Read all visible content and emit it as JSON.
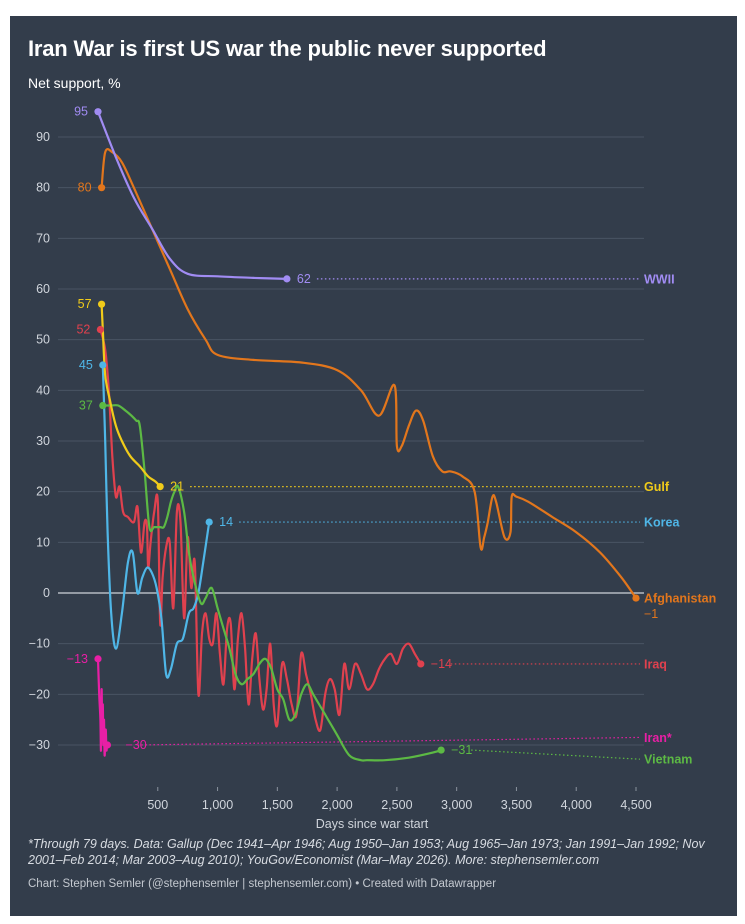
{
  "header": {
    "title": "Iran War is first US war the public never supported",
    "subtitle": "Net support, %"
  },
  "footer": {
    "note": "*Through 79 days. Data: Gallup (Dec 1941–Apr 1946; Aug 1950–Jan 1953; Aug 1965–Jan 1973; Jan 1991–Jan 1992; Nov 2001–Feb 2014; Mar 2003–Aug 2010); YouGov/Economist (Mar–May 2026). More: stephensemler.com",
    "credit": "Chart: Stephen Semler (@stephensemler | stephensemler.com) • Created with Datawrapper"
  },
  "chart_data": {
    "type": "line",
    "title": "Iran War is first US war the public never supported",
    "subtitle": "Net support, %",
    "xlabel": "Days since war start",
    "ylabel": "",
    "xlim": [
      -150,
      4600
    ],
    "ylim": [
      -38,
      98
    ],
    "x_ticks": [
      500,
      1000,
      1500,
      2000,
      2500,
      3000,
      3500,
      4000,
      4500
    ],
    "x_tick_labels": [
      "500",
      "1,000",
      "1,500",
      "2,000",
      "2,500",
      "3,000",
      "3,500",
      "4,000",
      "4,500"
    ],
    "y_ticks": [
      -30,
      -20,
      -10,
      0,
      10,
      20,
      30,
      40,
      50,
      60,
      70,
      80,
      90
    ],
    "y_tick_labels": [
      "−30",
      "−20",
      "−10",
      "0",
      "10",
      "20",
      "30",
      "40",
      "50",
      "60",
      "70",
      "80",
      "90"
    ],
    "grid": true,
    "legend": "direct labels at right",
    "series": [
      {
        "name": "WWII",
        "color": "#a18cf3",
        "start_label": "95",
        "end_label": "62",
        "x": [
          0,
          150,
          300,
          450,
          600,
          750,
          1000,
          1300,
          1580
        ],
        "y": [
          95,
          86,
          78,
          72,
          66,
          63,
          62.5,
          62.2,
          62
        ]
      },
      {
        "name": "Afghanistan",
        "color": "#e2761c",
        "start_label": "80",
        "end_label": "−1",
        "x": [
          30,
          60,
          120,
          200,
          300,
          450,
          600,
          750,
          900,
          1000,
          1300,
          1700,
          2000,
          2200,
          2350,
          2480,
          2500,
          2540,
          2600,
          2660,
          2720,
          2800,
          2880,
          2950,
          3050,
          3150,
          3200,
          3230,
          3260,
          3300,
          3330,
          3400,
          3450,
          3460,
          3500,
          3600,
          3800,
          4000,
          4200,
          4380,
          4500
        ],
        "y": [
          80,
          87,
          87,
          85,
          80,
          72,
          64,
          56,
          50,
          47,
          46,
          45.5,
          44,
          40,
          35,
          41,
          29,
          29,
          33,
          36,
          34,
          27,
          24,
          24,
          23,
          20,
          9,
          11,
          14,
          19,
          18,
          11,
          12,
          19,
          19,
          18,
          15,
          12,
          8,
          3,
          -1
        ]
      },
      {
        "name": "Gulf",
        "color": "#f0cb1a",
        "start_label": "57",
        "end_label": "21",
        "x": [
          30,
          40,
          60,
          100,
          150,
          200,
          270,
          350,
          420,
          480,
          520
        ],
        "y": [
          57,
          52,
          43,
          38,
          33,
          30,
          27,
          25,
          23,
          22,
          21
        ]
      },
      {
        "name": "Iraq",
        "color": "#e0414e",
        "start_label": "52",
        "end_label": "−14",
        "x": [
          20,
          60,
          90,
          120,
          150,
          180,
          210,
          250,
          300,
          330,
          360,
          390,
          410,
          420,
          440,
          470,
          500,
          520,
          540,
          570,
          600,
          630,
          660,
          690,
          720,
          750,
          780,
          810,
          840,
          870,
          900,
          930,
          960,
          990,
          1020,
          1050,
          1080,
          1110,
          1140,
          1170,
          1200,
          1230,
          1260,
          1290,
          1320,
          1350,
          1380,
          1410,
          1440,
          1470,
          1500,
          1540,
          1580,
          1620,
          1660,
          1700,
          1740,
          1780,
          1820,
          1860,
          1900,
          1940,
          1980,
          2020,
          2060,
          2100,
          2150,
          2200,
          2250,
          2300,
          2350,
          2400,
          2450,
          2500,
          2550,
          2600,
          2650,
          2700
        ],
        "y": [
          52,
          48,
          40,
          27,
          19,
          21,
          16,
          15,
          14,
          17,
          8,
          14,
          13,
          5,
          10,
          16,
          18,
          -6,
          3,
          9,
          10,
          -3,
          16,
          14,
          -5,
          11,
          1,
          6,
          -20,
          -8,
          -4,
          -9,
          -10,
          -4,
          -12,
          -18,
          -7,
          -6,
          -19,
          -9,
          -4,
          -11,
          -22,
          -13,
          -8,
          -17,
          -23,
          -19,
          -10,
          -22,
          -26,
          -14,
          -17,
          -22,
          -24,
          -12,
          -16,
          -20,
          -25,
          -27,
          -20,
          -17,
          -19,
          -24,
          -14,
          -19,
          -14,
          -16,
          -19,
          -18,
          -15,
          -13,
          -12,
          -14,
          -11,
          -10,
          -12,
          -14
        ]
      },
      {
        "name": "Korea",
        "color": "#4fb6e7",
        "start_label": "45",
        "end_label": "14",
        "x": [
          40,
          60,
          80,
          110,
          150,
          200,
          250,
          290,
          330,
          370,
          410,
          450,
          490,
          530,
          570,
          610,
          660,
          710,
          760,
          800,
          840,
          880,
          930
        ],
        "y": [
          45,
          30,
          12,
          -4,
          -11,
          -4,
          6,
          8,
          0,
          3,
          5,
          4,
          1,
          -5,
          -16,
          -15,
          -10,
          -9,
          -4,
          -3,
          0,
          6,
          14
        ]
      },
      {
        "name": "Vietnam",
        "color": "#5cb944",
        "start_label": "37",
        "end_label": "−31",
        "x": [
          40,
          70,
          110,
          170,
          230,
          280,
          320,
          350,
          390,
          430,
          470,
          520,
          550,
          580,
          610,
          640,
          670,
          720,
          760,
          800,
          860,
          900,
          950,
          1000,
          1050,
          1100,
          1150,
          1200,
          1250,
          1300,
          1350,
          1400,
          1450,
          1500,
          1550,
          1600,
          1650,
          1700,
          1750,
          1800,
          1850,
          1900,
          1950,
          2000,
          2100,
          2200,
          2250,
          2400,
          2600,
          2800,
          2870
        ],
        "y": [
          37,
          37,
          37,
          37,
          36,
          35,
          34,
          33,
          24,
          13,
          13,
          13,
          13,
          15,
          18,
          20,
          21,
          16,
          8,
          3,
          -2,
          -1,
          1,
          -3,
          -7,
          -11,
          -16,
          -18,
          -17,
          -16,
          -14,
          -13,
          -15,
          -19,
          -21,
          -25,
          -24,
          -20,
          -18,
          -20,
          -22,
          -24,
          -26,
          -28,
          -32,
          -33,
          -33,
          -33,
          -32.5,
          -31.5,
          -31
        ]
      },
      {
        "name": "Iran*",
        "color": "#e81fa5",
        "start_label": "−13",
        "end_label": "−30",
        "x": [
          0,
          10,
          20,
          25,
          30,
          35,
          40,
          45,
          50,
          55,
          60,
          65,
          70,
          75,
          79
        ],
        "y": [
          -13,
          -20,
          -25,
          -31,
          -19,
          -27,
          -22,
          -30,
          -25,
          -32,
          -29,
          -27,
          -31,
          -30,
          -30
        ]
      }
    ],
    "reference_lines": [
      {
        "name": "WWII",
        "x": [
          1580,
          4500
        ],
        "y": [
          62,
          62
        ]
      },
      {
        "name": "Gulf",
        "x": [
          520,
          4500
        ],
        "y": [
          21,
          21
        ]
      },
      {
        "name": "Korea",
        "x": [
          930,
          4500
        ],
        "y": [
          14,
          14
        ]
      },
      {
        "name": "Iraq",
        "x": [
          2700,
          4500
        ],
        "y": [
          -14,
          -14
        ]
      },
      {
        "name": "Iran*",
        "x": [
          79,
          4500
        ],
        "y": [
          -30,
          -28.5
        ]
      },
      {
        "name": "Vietnam",
        "x": [
          2870,
          4500
        ],
        "y": [
          -31,
          -32.8
        ]
      }
    ],
    "right_labels": [
      {
        "text": "WWII",
        "y": 62,
        "color": "#a18cf3"
      },
      {
        "text": "Gulf",
        "y": 21,
        "color": "#f0cb1a"
      },
      {
        "text": "Korea",
        "y": 14,
        "color": "#4fb6e7"
      },
      {
        "text": "Afghanistan",
        "y": -1,
        "color": "#e2761c"
      },
      {
        "text": "−1",
        "y": -4,
        "color": "#e2761c"
      },
      {
        "text": "Iraq",
        "y": -14,
        "color": "#e0414e"
      },
      {
        "text": "Iran*",
        "y": -28.5,
        "color": "#e81fa5"
      },
      {
        "text": "Vietnam",
        "y": -32.8,
        "color": "#5cb944"
      }
    ],
    "background_color": "#333d4b",
    "grid_color": "#4a5463",
    "text_color": "#d0d5dc"
  }
}
